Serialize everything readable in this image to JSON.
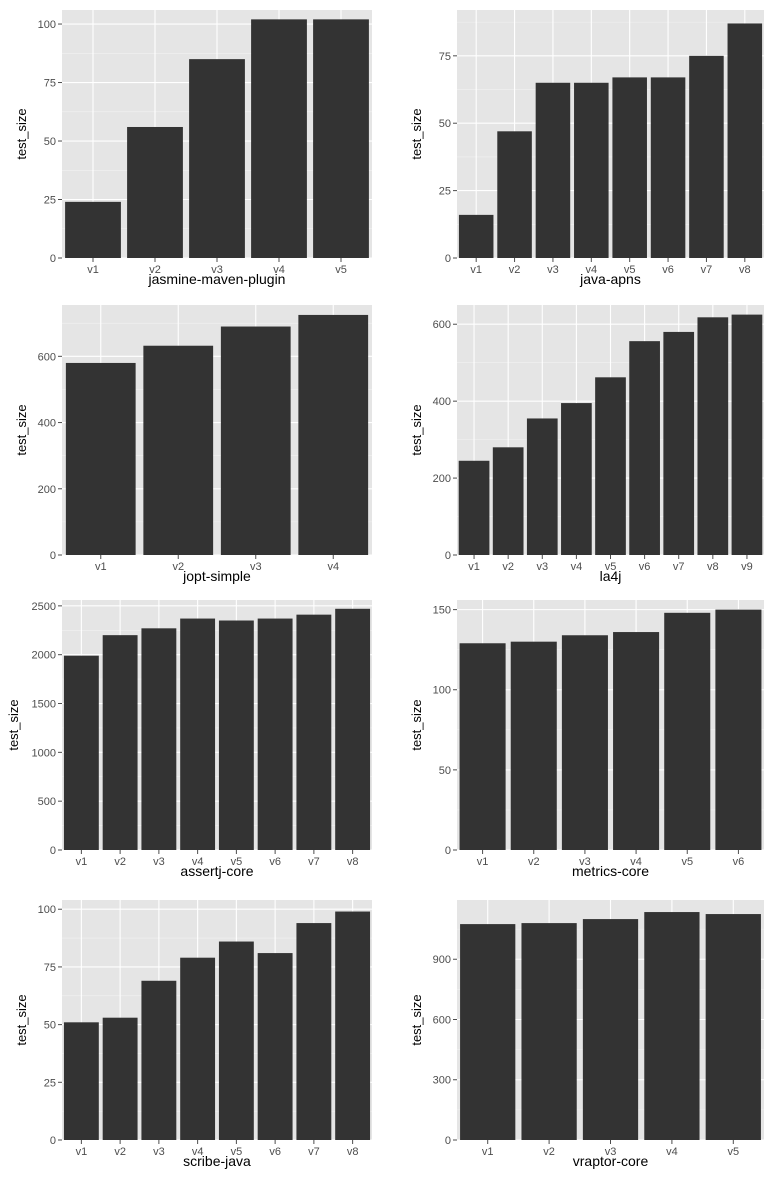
{
  "style": {
    "panel_bg": "#e5e5e5",
    "grid_major": "#ffffff",
    "bar_fill": "#333333",
    "text": "#000000",
    "tick_text": "#4d4d4d"
  },
  "chart_data": [
    {
      "type": "bar",
      "xlabel": "jasmine-maven-plugin",
      "ylabel": "test_size",
      "categories": [
        "v1",
        "v2",
        "v3",
        "v4",
        "v5"
      ],
      "values": [
        24,
        56,
        85,
        102,
        102
      ],
      "yticks": [
        0,
        25,
        50,
        75,
        100
      ],
      "ylim": [
        0,
        106
      ]
    },
    {
      "type": "bar",
      "xlabel": "java-apns",
      "ylabel": "test_size",
      "categories": [
        "v1",
        "v2",
        "v3",
        "v4",
        "v5",
        "v6",
        "v7",
        "v8"
      ],
      "values": [
        16,
        47,
        65,
        65,
        67,
        67,
        75,
        87
      ],
      "yticks": [
        0,
        25,
        50,
        75
      ],
      "ylim": [
        0,
        92
      ]
    },
    {
      "type": "bar",
      "xlabel": "jopt-simple",
      "ylabel": "test_size",
      "categories": [
        "v1",
        "v2",
        "v3",
        "v4"
      ],
      "values": [
        580,
        632,
        690,
        725
      ],
      "yticks": [
        0,
        200,
        400,
        600
      ],
      "ylim": [
        0,
        755
      ]
    },
    {
      "type": "bar",
      "xlabel": "la4j",
      "ylabel": "test_size",
      "categories": [
        "v1",
        "v2",
        "v3",
        "v4",
        "v5",
        "v6",
        "v7",
        "v8",
        "v9"
      ],
      "values": [
        245,
        280,
        355,
        395,
        462,
        556,
        580,
        618,
        625
      ],
      "yticks": [
        0,
        200,
        400,
        600
      ],
      "ylim": [
        0,
        650
      ]
    },
    {
      "type": "bar",
      "xlabel": "assertj-core",
      "ylabel": "test_size",
      "categories": [
        "v1",
        "v2",
        "v3",
        "v4",
        "v5",
        "v6",
        "v7",
        "v8"
      ],
      "values": [
        1990,
        2200,
        2270,
        2370,
        2350,
        2370,
        2410,
        2470
      ],
      "yticks": [
        0,
        500,
        1000,
        1500,
        2000,
        2500
      ],
      "ylim": [
        0,
        2560
      ]
    },
    {
      "type": "bar",
      "xlabel": "metrics-core",
      "ylabel": "test_size",
      "categories": [
        "v1",
        "v2",
        "v3",
        "v4",
        "v5",
        "v6"
      ],
      "values": [
        129,
        130,
        134,
        136,
        148,
        150
      ],
      "yticks": [
        0,
        50,
        100,
        150
      ],
      "ylim": [
        0,
        156
      ]
    },
    {
      "type": "bar",
      "xlabel": "scribe-java",
      "ylabel": "test_size",
      "categories": [
        "v1",
        "v2",
        "v3",
        "v4",
        "v5",
        "v6",
        "v7",
        "v8"
      ],
      "values": [
        51,
        53,
        69,
        79,
        86,
        81,
        94,
        99
      ],
      "yticks": [
        0,
        25,
        50,
        75,
        100
      ],
      "ylim": [
        0,
        104
      ]
    },
    {
      "type": "bar",
      "xlabel": "vraptor-core",
      "ylabel": "test_size",
      "categories": [
        "v1",
        "v2",
        "v3",
        "v4",
        "v5"
      ],
      "values": [
        1075,
        1080,
        1100,
        1135,
        1125
      ],
      "yticks": [
        0,
        300,
        600,
        900
      ],
      "ylim": [
        0,
        1195
      ]
    }
  ]
}
